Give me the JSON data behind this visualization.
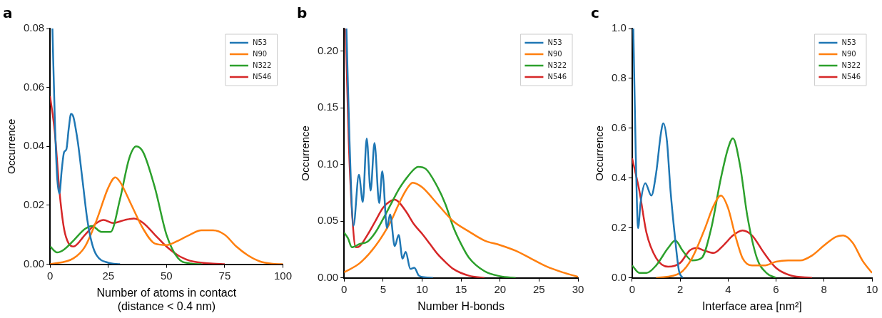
{
  "chart_data": [
    {
      "type": "line",
      "title": "a",
      "xlabel": "Number of atoms in contact\n(distance < 0.4 nm)",
      "ylabel": "Occurrence",
      "legend": "top right",
      "grid": false,
      "xlim": [
        0,
        100
      ],
      "xticks": [
        0,
        25,
        50,
        75,
        100
      ],
      "ylim": [
        0,
        0.08
      ],
      "yticks": [
        {
          "value": 0,
          "label": "0.00"
        },
        {
          "value": 0.02,
          "label": "0.02"
        },
        {
          "value": 0.04,
          "label": "0.04"
        },
        {
          "value": 0.06,
          "label": "0.06"
        },
        {
          "value": 0.08,
          "label": "0.08"
        }
      ],
      "series": [
        {
          "name": "N53",
          "color": "#1f77b4",
          "x": [
            1,
            2,
            3,
            4,
            5,
            6,
            7,
            8,
            9,
            10,
            11,
            12,
            14,
            16,
            18,
            20,
            25,
            30
          ],
          "values": [
            0.08,
            0.05,
            0.03,
            0.024,
            0.032,
            0.038,
            0.039,
            0.046,
            0.051,
            0.05,
            0.046,
            0.041,
            0.028,
            0.015,
            0.007,
            0.003,
            0.0005,
            0
          ]
        },
        {
          "name": "N90",
          "color": "#ff7f0e",
          "x": [
            0,
            10,
            15,
            20,
            25,
            28,
            30,
            35,
            40,
            45,
            50,
            55,
            60,
            65,
            70,
            75,
            80,
            85,
            90,
            95,
            100
          ],
          "values": [
            0,
            0.002,
            0.006,
            0.015,
            0.026,
            0.0295,
            0.028,
            0.02,
            0.012,
            0.007,
            0.0065,
            0.008,
            0.01,
            0.0115,
            0.0115,
            0.01,
            0.006,
            0.003,
            0.001,
            0.0002,
            0
          ]
        },
        {
          "name": "N322",
          "color": "#2ca02c",
          "x": [
            0,
            3,
            6,
            10,
            15,
            18,
            22,
            26,
            30,
            34,
            37,
            40,
            45,
            50,
            55,
            60,
            65
          ],
          "values": [
            0.006,
            0.004,
            0.005,
            0.008,
            0.012,
            0.013,
            0.011,
            0.011,
            0.022,
            0.036,
            0.04,
            0.038,
            0.026,
            0.01,
            0.002,
            0.0003,
            0
          ]
        },
        {
          "name": "N546",
          "color": "#d62728",
          "x": [
            0,
            2,
            4,
            6,
            8,
            10,
            15,
            20,
            23,
            27,
            32,
            36,
            40,
            45,
            50,
            55,
            60,
            70,
            75
          ],
          "values": [
            0.057,
            0.045,
            0.025,
            0.012,
            0.007,
            0.006,
            0.01,
            0.014,
            0.015,
            0.014,
            0.015,
            0.0155,
            0.014,
            0.01,
            0.006,
            0.003,
            0.0012,
            0.0002,
            0
          ]
        }
      ]
    },
    {
      "type": "line",
      "title": "b",
      "xlabel": "Number H-bonds",
      "ylabel": "Occurrence",
      "legend": "top right",
      "grid": false,
      "xlim": [
        0,
        30
      ],
      "xticks": [
        0,
        5,
        10,
        15,
        20,
        25,
        30
      ],
      "ylim": [
        0,
        0.22
      ],
      "yticks": [
        {
          "value": 0,
          "label": "0.00"
        },
        {
          "value": 0.05,
          "label": "0.05"
        },
        {
          "value": 0.1,
          "label": "0.10"
        },
        {
          "value": 0.15,
          "label": "0.15"
        },
        {
          "value": 0.2,
          "label": "0.20"
        }
      ],
      "series": [
        {
          "name": "N53",
          "color": "#1f77b4",
          "x": [
            0.3,
            0.7,
            1.2,
            1.9,
            2.4,
            2.9,
            3.4,
            3.9,
            4.5,
            4.9,
            5.5,
            5.9,
            6.5,
            7,
            7.5,
            7.9,
            8.5,
            9,
            9.6,
            10.4,
            11.4
          ],
          "values": [
            0.22,
            0.12,
            0.046,
            0.091,
            0.067,
            0.123,
            0.077,
            0.119,
            0.066,
            0.094,
            0.044,
            0.056,
            0.028,
            0.038,
            0.017,
            0.023,
            0.008,
            0.009,
            0.002,
            0.0005,
            0
          ]
        },
        {
          "name": "N90",
          "color": "#ff7f0e",
          "x": [
            0,
            2,
            4,
            6,
            7,
            8,
            8.8,
            10,
            12,
            14,
            16,
            18,
            20,
            22,
            24,
            26,
            28,
            30
          ],
          "values": [
            0.005,
            0.013,
            0.028,
            0.05,
            0.065,
            0.078,
            0.084,
            0.08,
            0.065,
            0.05,
            0.041,
            0.033,
            0.029,
            0.024,
            0.017,
            0.01,
            0.005,
            0.001
          ]
        },
        {
          "name": "N322",
          "color": "#2ca02c",
          "x": [
            0,
            0.5,
            1,
            2,
            3,
            4,
            5,
            6,
            7,
            8,
            9,
            9.5,
            10.5,
            12,
            13,
            14,
            15,
            16,
            18,
            20,
            22
          ],
          "values": [
            0.04,
            0.035,
            0.027,
            0.03,
            0.032,
            0.04,
            0.052,
            0.065,
            0.078,
            0.088,
            0.096,
            0.098,
            0.096,
            0.08,
            0.065,
            0.045,
            0.03,
            0.018,
            0.006,
            0.0015,
            0
          ]
        },
        {
          "name": "N546",
          "color": "#d62728",
          "x": [
            0.2,
            0.6,
            1,
            1.5,
            2,
            3,
            4,
            5,
            6,
            6.5,
            7,
            8,
            9,
            10,
            11,
            12,
            13,
            14,
            16,
            18
          ],
          "values": [
            0.22,
            0.12,
            0.06,
            0.027,
            0.028,
            0.038,
            0.05,
            0.062,
            0.068,
            0.069,
            0.067,
            0.058,
            0.047,
            0.039,
            0.03,
            0.021,
            0.014,
            0.008,
            0.002,
            0
          ]
        }
      ]
    },
    {
      "type": "line",
      "title": "c",
      "xlabel": "Interface area [nm²]",
      "ylabel": "Occurrence",
      "legend": "top right",
      "grid": false,
      "xlim": [
        0,
        10
      ],
      "xticks": [
        0,
        2,
        4,
        6,
        8,
        10
      ],
      "ylim": [
        0,
        1
      ],
      "yticks": [
        {
          "value": 0,
          "label": "0.0"
        },
        {
          "value": 0.2,
          "label": "0.2"
        },
        {
          "value": 0.4,
          "label": "0.4"
        },
        {
          "value": 0.6,
          "label": "0.6"
        },
        {
          "value": 0.8,
          "label": "0.8"
        },
        {
          "value": 1,
          "label": "1.0"
        }
      ],
      "series": [
        {
          "name": "N53",
          "color": "#1f77b4",
          "x": [
            0.05,
            0.15,
            0.25,
            0.35,
            0.55,
            0.8,
            1,
            1.2,
            1.3,
            1.45,
            1.6,
            1.8,
            1.95,
            2.1
          ],
          "values": [
            1,
            0.5,
            0.2,
            0.3,
            0.38,
            0.33,
            0.42,
            0.58,
            0.62,
            0.55,
            0.35,
            0.15,
            0.03,
            0
          ]
        },
        {
          "name": "N90",
          "color": "#ff7f0e",
          "x": [
            1,
            2,
            2.5,
            3,
            3.4,
            3.7,
            4,
            4.3,
            4.6,
            5,
            5.5,
            6,
            6.5,
            7,
            7.5,
            8,
            8.5,
            8.8,
            9.2,
            9.6,
            10
          ],
          "values": [
            0,
            0.02,
            0.08,
            0.19,
            0.29,
            0.33,
            0.28,
            0.17,
            0.08,
            0.05,
            0.05,
            0.065,
            0.07,
            0.07,
            0.09,
            0.13,
            0.165,
            0.17,
            0.14,
            0.07,
            0.02
          ]
        },
        {
          "name": "N322",
          "color": "#2ca02c",
          "x": [
            0,
            0.3,
            0.6,
            1,
            1.5,
            1.8,
            2.1,
            2.5,
            2.9,
            3.3,
            3.7,
            4,
            4.2,
            4.5,
            4.8,
            5.2,
            5.6,
            6
          ],
          "values": [
            0.05,
            0.02,
            0.02,
            0.05,
            0.12,
            0.15,
            0.11,
            0.07,
            0.08,
            0.2,
            0.4,
            0.52,
            0.56,
            0.45,
            0.25,
            0.08,
            0.02,
            0
          ]
        },
        {
          "name": "N546",
          "color": "#d62728",
          "x": [
            0,
            0.3,
            0.6,
            1,
            1.5,
            2,
            2.4,
            2.7,
            3,
            3.4,
            3.8,
            4.2,
            4.6,
            5,
            5.5,
            6,
            6.6,
            7.5
          ],
          "values": [
            0.48,
            0.35,
            0.18,
            0.08,
            0.045,
            0.06,
            0.11,
            0.12,
            0.11,
            0.1,
            0.13,
            0.17,
            0.19,
            0.17,
            0.1,
            0.04,
            0.01,
            0
          ]
        }
      ]
    }
  ]
}
